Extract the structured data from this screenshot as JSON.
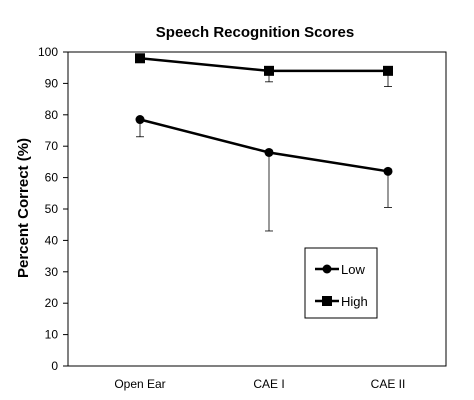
{
  "chart_data": {
    "type": "line",
    "title": "Speech Recognition Scores",
    "xlabel": "",
    "ylabel": "Percent Correct (%)",
    "categories": [
      "Open Ear",
      "CAE I",
      "CAE II"
    ],
    "ylim": [
      0,
      100
    ],
    "yticks": [
      0,
      10,
      20,
      30,
      40,
      50,
      60,
      70,
      80,
      90,
      100
    ],
    "grid": false,
    "legend_position": "bottom-right",
    "series": [
      {
        "name": "Low",
        "marker": "circle",
        "color": "#000000",
        "values": [
          78.5,
          68,
          62
        ],
        "error_low": [
          73,
          43,
          50.5
        ],
        "error_high": [
          78.5,
          68,
          62
        ]
      },
      {
        "name": "High",
        "marker": "square",
        "color": "#000000",
        "values": [
          98,
          94,
          94
        ],
        "error_low": [
          98,
          90.5,
          89
        ],
        "error_high": [
          98,
          94,
          94
        ]
      }
    ]
  }
}
